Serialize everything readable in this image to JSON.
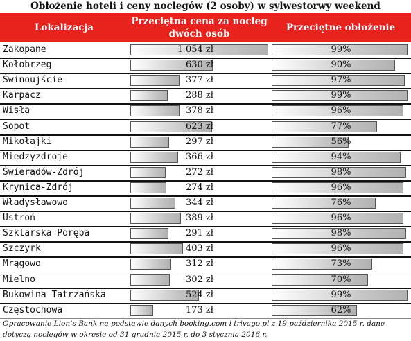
{
  "title": "Obłożenie hoteli i ceny noclegów (2 osoby) w sylwestorwy weekend",
  "header": {
    "location": "Lokalizacja",
    "price_line1": "Przeciętna cena za nocleg",
    "price_line2": "dwóch osób",
    "occupancy": "Przeciętne obłożenie"
  },
  "colors": {
    "header_bg": "#e8221c",
    "header_text": "#ffffff",
    "bar_border": "#555555"
  },
  "chart_data": {
    "type": "table",
    "price_scale_max": 1054,
    "occupancy_scale_max": 100,
    "rows": [
      {
        "name": "Zakopane",
        "price": 1054,
        "price_label": "1 054 zł",
        "occupancy": 99,
        "occupancy_label": "99%"
      },
      {
        "name": "Kołobrzeg",
        "price": 630,
        "price_label": "630 zł",
        "occupancy": 90,
        "occupancy_label": "90%"
      },
      {
        "name": "Świnoujście",
        "price": 377,
        "price_label": "377 zł",
        "occupancy": 97,
        "occupancy_label": "97%"
      },
      {
        "name": "Karpacz",
        "price": 288,
        "price_label": "288 zł",
        "occupancy": 99,
        "occupancy_label": "99%"
      },
      {
        "name": "Wisła",
        "price": 378,
        "price_label": "378 zł",
        "occupancy": 96,
        "occupancy_label": "96%"
      },
      {
        "name": "Sopot",
        "price": 623,
        "price_label": "623 zł",
        "occupancy": 77,
        "occupancy_label": "77%"
      },
      {
        "name": "Mikołajki",
        "price": 297,
        "price_label": "297 zł",
        "occupancy": 56,
        "occupancy_label": "56%"
      },
      {
        "name": "Międzyzdroje",
        "price": 366,
        "price_label": "366 zł",
        "occupancy": 94,
        "occupancy_label": "94%"
      },
      {
        "name": "Świeradów-Zdrój",
        "price": 272,
        "price_label": "272 zł",
        "occupancy": 98,
        "occupancy_label": "98%"
      },
      {
        "name": "Krynica-Zdrój",
        "price": 274,
        "price_label": "274 zł",
        "occupancy": 96,
        "occupancy_label": "96%"
      },
      {
        "name": "Władysławowo",
        "price": 344,
        "price_label": "344 zł",
        "occupancy": 76,
        "occupancy_label": "76%"
      },
      {
        "name": "Ustroń",
        "price": 389,
        "price_label": "389 zł",
        "occupancy": 96,
        "occupancy_label": "96%"
      },
      {
        "name": "Szklarska Poręba",
        "price": 291,
        "price_label": "291 zł",
        "occupancy": 98,
        "occupancy_label": "98%"
      },
      {
        "name": "Szczyrk",
        "price": 403,
        "price_label": "403 zł",
        "occupancy": 96,
        "occupancy_label": "96%"
      },
      {
        "name": "Mrągowo",
        "price": 312,
        "price_label": "312 zł",
        "occupancy": 73,
        "occupancy_label": "73%"
      },
      {
        "name": "Mielno",
        "price": 302,
        "price_label": "302 zł",
        "occupancy": 70,
        "occupancy_label": "70%"
      },
      {
        "name": "Bukowina Tatrzańska",
        "price": 524,
        "price_label": "524 zł",
        "occupancy": 99,
        "occupancy_label": "99%"
      },
      {
        "name": "Częstochowa",
        "price": 173,
        "price_label": "173 zł",
        "occupancy": 62,
        "occupancy_label": "62%"
      }
    ]
  },
  "footnote_line1": "Opracowanie Lion’s Bank na podstawie danych booking.com i trivago.pl z 19 października 2015 r. dane",
  "footnote_line2": "dotyczą noclegów w okresie od 31 grudnia 2015 r. do 3 stycznia 2016 r."
}
